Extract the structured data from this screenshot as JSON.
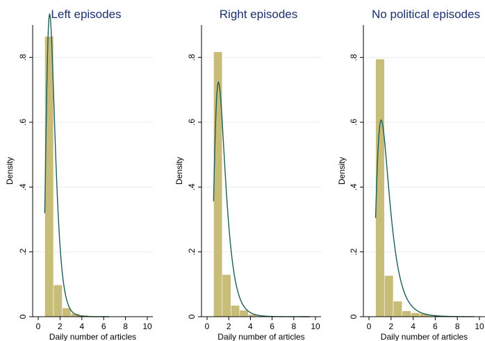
{
  "chart_data": [
    {
      "type": "histogram",
      "title": "Left episodes",
      "xlabel": "Daily number of articles",
      "ylabel": "Density",
      "xlim": [
        0,
        10
      ],
      "ylim": [
        0,
        0.9
      ],
      "x_ticks": [
        "0",
        "2",
        "4",
        "6",
        "8",
        "10"
      ],
      "y_ticks": [
        "0",
        ".2",
        ".4",
        ".6",
        ".8"
      ],
      "grid": true,
      "bin_width": 0.8,
      "bins": [
        {
          "x0": 0.6,
          "x1": 1.4,
          "density": 0.865
        },
        {
          "x0": 1.4,
          "x1": 2.2,
          "density": 0.098
        },
        {
          "x0": 2.2,
          "x1": 3.0,
          "density": 0.027
        },
        {
          "x0": 3.0,
          "x1": 3.8,
          "density": 0.01
        },
        {
          "x0": 3.8,
          "x1": 4.6,
          "density": 0.005
        },
        {
          "x0": 4.6,
          "x1": 5.4,
          "density": 0.002
        }
      ],
      "curve": {
        "type": "lognormal",
        "mu": 0.19,
        "sigma": 0.38,
        "x_range": [
          0.6,
          6.5
        ]
      }
    },
    {
      "type": "histogram",
      "title": "Right episodes",
      "xlabel": "Daily number of articles",
      "ylabel": "Density",
      "xlim": [
        0,
        10
      ],
      "ylim": [
        0,
        0.9
      ],
      "x_ticks": [
        "0",
        "2",
        "4",
        "6",
        "8",
        "10"
      ],
      "y_ticks": [
        "0",
        ".2",
        ".4",
        ".6",
        ".8"
      ],
      "grid": true,
      "bin_width": 0.8,
      "bins": [
        {
          "x0": 0.6,
          "x1": 1.4,
          "density": 0.817
        },
        {
          "x0": 1.4,
          "x1": 2.2,
          "density": 0.13
        },
        {
          "x0": 2.2,
          "x1": 3.0,
          "density": 0.035
        },
        {
          "x0": 3.0,
          "x1": 3.8,
          "density": 0.02
        },
        {
          "x0": 3.8,
          "x1": 4.6,
          "density": 0.007
        },
        {
          "x0": 4.6,
          "x1": 5.4,
          "density": 0.003
        },
        {
          "x0": 5.4,
          "x1": 6.2,
          "density": 0.002
        }
      ],
      "curve": {
        "type": "lognormal",
        "mu": 0.27,
        "sigma": 0.47,
        "x_range": [
          0.6,
          9.5
        ]
      }
    },
    {
      "type": "histogram",
      "title": "No political episodes",
      "xlabel": "Daily number of articles",
      "ylabel": "Density",
      "xlim": [
        0,
        10
      ],
      "ylim": [
        0,
        0.9
      ],
      "x_ticks": [
        "0",
        "2",
        "4",
        "6",
        "8",
        "10"
      ],
      "y_ticks": [
        "0",
        ".2",
        ".4",
        ".6",
        ".8"
      ],
      "grid": true,
      "bin_width": 0.8,
      "bins": [
        {
          "x0": 0.6,
          "x1": 1.4,
          "density": 0.795
        },
        {
          "x0": 1.4,
          "x1": 2.2,
          "density": 0.127
        },
        {
          "x0": 2.2,
          "x1": 3.0,
          "density": 0.048
        },
        {
          "x0": 3.0,
          "x1": 3.8,
          "density": 0.018
        },
        {
          "x0": 3.8,
          "x1": 4.6,
          "density": 0.012
        },
        {
          "x0": 4.6,
          "x1": 5.4,
          "density": 0.01
        },
        {
          "x0": 5.4,
          "x1": 6.2,
          "density": 0.006
        },
        {
          "x0": 6.2,
          "x1": 7.0,
          "density": 0.004
        },
        {
          "x0": 7.0,
          "x1": 7.8,
          "density": 0.002
        }
      ],
      "curve": {
        "type": "lognormal",
        "mu": 0.37,
        "sigma": 0.52,
        "x_range": [
          0.6,
          9.5
        ]
      }
    }
  ],
  "colors": {
    "bar_fill": "#c7bd78",
    "bar_stroke": "#ffffff",
    "curve": "#1b5e57",
    "title": "#1a2f6e",
    "grid": "#e8ecee"
  }
}
